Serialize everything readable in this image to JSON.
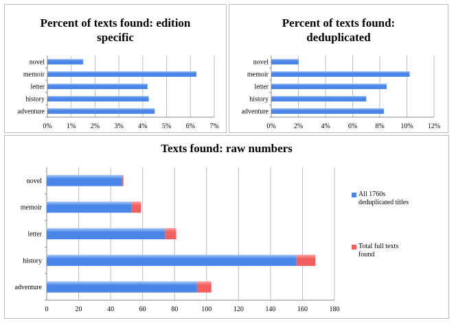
{
  "chart_data": [
    {
      "type": "bar",
      "orientation": "horizontal",
      "title": "Percent of texts found: edition specific",
      "categories": [
        "adventure",
        "history",
        "letter",
        "memoir",
        "novel"
      ],
      "values": [
        4.5,
        4.25,
        4.2,
        6.25,
        1.5
      ],
      "xlim": [
        0,
        7
      ],
      "xticks": [
        "0%",
        "1%",
        "2%",
        "3%",
        "4%",
        "5%",
        "6%",
        "7%"
      ],
      "grid": true,
      "color": "#4a86e8"
    },
    {
      "type": "bar",
      "orientation": "horizontal",
      "title": "Percent of texts found: deduplicated",
      "categories": [
        "adventure",
        "history",
        "letter",
        "memoir",
        "novel"
      ],
      "values": [
        8.3,
        7.0,
        8.5,
        10.2,
        2.0
      ],
      "xlim": [
        0,
        12
      ],
      "xticks": [
        "0%",
        "2%",
        "4%",
        "6%",
        "8%",
        "10%",
        "12%"
      ],
      "grid": true,
      "color": "#4a86e8"
    },
    {
      "type": "bar",
      "orientation": "horizontal",
      "stacked": true,
      "title": "Texts found: raw numbers",
      "categories": [
        "adventure",
        "history",
        "letter",
        "memoir",
        "novel"
      ],
      "series": [
        {
          "name": "All 1760s deduplicated titles",
          "values": [
            94,
            156,
            74,
            53,
            47
          ],
          "color": "#4a86e8"
        },
        {
          "name": "Total full texts found",
          "values": [
            9,
            12,
            7,
            6,
            1
          ],
          "color": "#f25f5f"
        }
      ],
      "xlim": [
        0,
        180
      ],
      "xticks": [
        "0",
        "20",
        "40",
        "60",
        "80",
        "100",
        "120",
        "140",
        "160",
        "180"
      ],
      "grid": true,
      "legend": "right"
    }
  ]
}
